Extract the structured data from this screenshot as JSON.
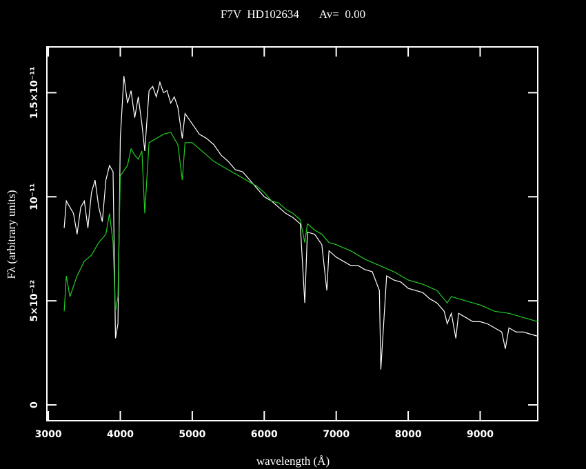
{
  "chart_data": {
    "type": "line",
    "title": "F7V  HD102634       Av=  0.00",
    "x_label": "wavelength (Å)",
    "y_label": "Fλ (arbitrary units)",
    "xlim": [
      2980,
      9800
    ],
    "ylim": [
      -7.6e-13,
      1.72e-11
    ],
    "xticks": [
      3000,
      4000,
      5000,
      6000,
      7000,
      8000,
      9000
    ],
    "yticks": [
      0,
      {
        "value": 5e-12,
        "label": "5×10⁻¹²"
      },
      {
        "value": 1e-11,
        "label": "10⁻¹¹"
      },
      {
        "value": 1.5e-11,
        "label": "1.5×10⁻¹¹"
      }
    ],
    "series": [
      {
        "color": "#ffffff",
        "x": [
          3220,
          3250,
          3300,
          3350,
          3400,
          3450,
          3500,
          3550,
          3600,
          3650,
          3700,
          3750,
          3800,
          3850,
          3900,
          3933,
          3968,
          4000,
          4050,
          4100,
          4150,
          4200,
          4250,
          4300,
          4340,
          4400,
          4450,
          4500,
          4550,
          4600,
          4650,
          4700,
          4750,
          4800,
          4861,
          4900,
          5000,
          5100,
          5200,
          5300,
          5400,
          5500,
          5600,
          5700,
          5800,
          5900,
          6000,
          6100,
          6200,
          6300,
          6400,
          6500,
          6563,
          6600,
          6700,
          6800,
          6870,
          6900,
          7000,
          7100,
          7200,
          7300,
          7400,
          7500,
          7600,
          7620,
          7700,
          7800,
          7900,
          8000,
          8100,
          8200,
          8300,
          8400,
          8500,
          8542,
          8600,
          8662,
          8700,
          8800,
          8900,
          9000,
          9100,
          9200,
          9300,
          9350,
          9400,
          9500,
          9600,
          9700,
          9800
        ],
        "values": [
          8.5e-12,
          9.8e-12,
          9.5e-12,
          9.2e-12,
          8.2e-12,
          9.5e-12,
          9.8e-12,
          8.5e-12,
          1.02e-11,
          1.08e-11,
          9.5e-12,
          8.8e-12,
          1.08e-11,
          1.15e-11,
          1.12e-11,
          3.2e-12,
          3.9e-12,
          1.28e-11,
          1.58e-11,
          1.45e-11,
          1.51e-11,
          1.38e-11,
          1.48e-11,
          1.35e-11,
          1.22e-11,
          1.51e-11,
          1.53e-11,
          1.48e-11,
          1.55e-11,
          1.5e-11,
          1.51e-11,
          1.45e-11,
          1.48e-11,
          1.43e-11,
          1.28e-11,
          1.4e-11,
          1.35e-11,
          1.3e-11,
          1.28e-11,
          1.25e-11,
          1.2e-11,
          1.17e-11,
          1.13e-11,
          1.12e-11,
          1.08e-11,
          1.04e-11,
          1e-11,
          9.8e-12,
          9.5e-12,
          9.2e-12,
          9e-12,
          8.7e-12,
          4.9e-12,
          8.3e-12,
          8.2e-12,
          7.7e-12,
          5.5e-12,
          7.4e-12,
          7.1e-12,
          6.9e-12,
          6.7e-12,
          6.7e-12,
          6.5e-12,
          6.4e-12,
          5.5e-12,
          1.7e-12,
          6.2e-12,
          6e-12,
          5.9e-12,
          5.6e-12,
          5.5e-12,
          5.4e-12,
          5.1e-12,
          4.9e-12,
          4.5e-12,
          3.9e-12,
          4.4e-12,
          3.2e-12,
          4.4e-12,
          4.2e-12,
          4e-12,
          4e-12,
          3.9e-12,
          3.7e-12,
          3.5e-12,
          2.7e-12,
          3.7e-12,
          3.5e-12,
          3.5e-12,
          3.4e-12,
          3.3e-12
        ]
      },
      {
        "color": "#22cc22",
        "x": [
          3220,
          3250,
          3300,
          3400,
          3500,
          3600,
          3700,
          3800,
          3850,
          3900,
          3933,
          3968,
          4000,
          4100,
          4150,
          4200,
          4250,
          4300,
          4340,
          4400,
          4500,
          4600,
          4700,
          4800,
          4861,
          4900,
          5000,
          5100,
          5200,
          5300,
          5400,
          5500,
          5600,
          5700,
          5800,
          5900,
          6000,
          6100,
          6200,
          6300,
          6400,
          6500,
          6563,
          6600,
          6700,
          6800,
          6900,
          7000,
          7200,
          7400,
          7600,
          7800,
          8000,
          8200,
          8400,
          8542,
          8600,
          8800,
          9000,
          9200,
          9400,
          9600,
          9800
        ],
        "values": [
          4.5e-12,
          6.2e-12,
          5.2e-12,
          6.2e-12,
          6.9e-12,
          7.2e-12,
          7.8e-12,
          8.2e-12,
          9.2e-12,
          7.8e-12,
          4.5e-12,
          5.2e-12,
          1.1e-11,
          1.15e-11,
          1.23e-11,
          1.2e-11,
          1.18e-11,
          1.22e-11,
          9.2e-12,
          1.26e-11,
          1.28e-11,
          1.3e-11,
          1.31e-11,
          1.25e-11,
          1.08e-11,
          1.26e-11,
          1.26e-11,
          1.23e-11,
          1.2e-11,
          1.17e-11,
          1.15e-11,
          1.13e-11,
          1.11e-11,
          1.09e-11,
          1.07e-11,
          1.05e-11,
          1.02e-11,
          9.8e-12,
          9.7e-12,
          9.4e-12,
          9.2e-12,
          8.9e-12,
          7.8e-12,
          8.7e-12,
          8.4e-12,
          8.2e-12,
          7.8e-12,
          7.7e-12,
          7.4e-12,
          7e-12,
          6.7e-12,
          6.4e-12,
          6e-12,
          5.8e-12,
          5.5e-12,
          4.9e-12,
          5.2e-12,
          5e-12,
          4.8e-12,
          4.5e-12,
          4.4e-12,
          4.2e-12,
          4e-12
        ]
      }
    ]
  }
}
